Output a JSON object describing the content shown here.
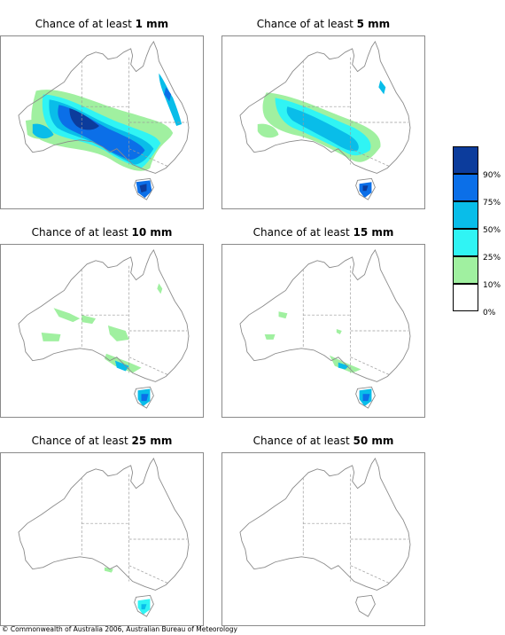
{
  "panels": [
    {
      "prefix": "Chance of at least ",
      "amount": "1 mm"
    },
    {
      "prefix": "Chance of at least ",
      "amount": "5 mm"
    },
    {
      "prefix": "Chance of at least ",
      "amount": "10 mm"
    },
    {
      "prefix": "Chance of at least ",
      "amount": "15 mm"
    },
    {
      "prefix": "Chance of at least ",
      "amount": "25 mm"
    },
    {
      "prefix": "Chance of at least ",
      "amount": "50 mm"
    }
  ],
  "legend": {
    "labels": [
      "90%",
      "75%",
      "50%",
      "25%",
      "10%",
      "0%"
    ],
    "colors": [
      "#0c3c9c",
      "#0b6fe8",
      "#09bde9",
      "#30f4f4",
      "#a0f0a0",
      "#ffffff"
    ]
  },
  "colors": {
    "outline": "#8a8a8a",
    "borders": "#9a9a9a"
  },
  "copyright": "© Commonwealth of Australia 2006, Australian Bureau of Meteorology"
}
